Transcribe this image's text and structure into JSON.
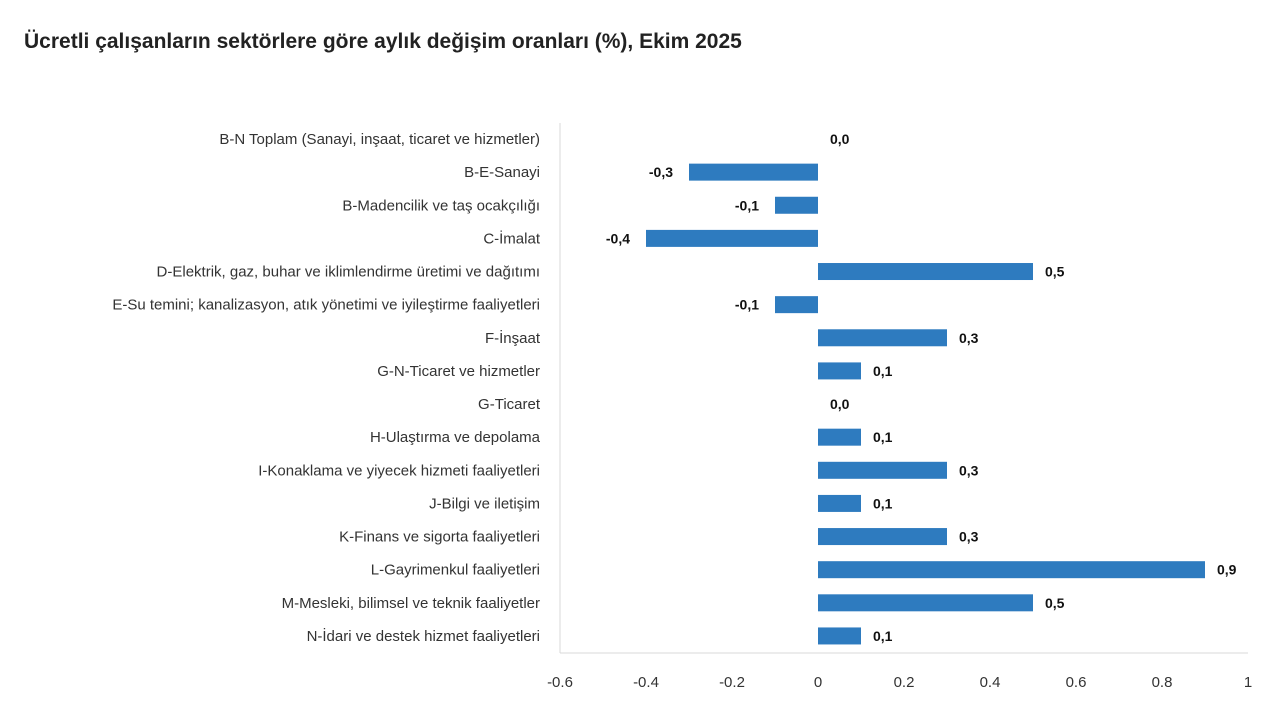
{
  "chart_data": {
    "type": "bar",
    "orientation": "horizontal",
    "title": "Ücretli çalışanların sektörlere göre aylık değişim oranları (%), Ekim 2025",
    "xlabel": "",
    "ylabel": "",
    "xlim": [
      -0.6,
      1.0
    ],
    "ticks": [
      "-0.6",
      "-0.4",
      "-0.2",
      "0",
      "0.2",
      "0.4",
      "0.6",
      "0.8",
      "1"
    ],
    "tick_values": [
      -0.6,
      -0.4,
      -0.2,
      0,
      0.2,
      0.4,
      0.6,
      0.8,
      1.0
    ],
    "grid": false,
    "bar_color": "#2e7bbf",
    "categories": [
      "B-N Toplam (Sanayi, inşaat, ticaret ve hizmetler)",
      "B-E-Sanayi",
      "B-Madencilik ve taş ocakçılığı",
      "C-İmalat",
      "D-Elektrik, gaz, buhar ve iklimlendirme üretimi ve dağıtımı",
      "E-Su temini; kanalizasyon, atık yönetimi ve iyileştirme faaliyetleri",
      "F-İnşaat",
      "G-N-Ticaret ve hizmetler",
      "G-Ticaret",
      "H-Ulaştırma ve depolama",
      "I-Konaklama ve yiyecek hizmeti faaliyetleri",
      "J-Bilgi ve iletişim",
      "K-Finans ve sigorta faaliyetleri",
      "L-Gayrimenkul faaliyetleri",
      "M-Mesleki, bilimsel ve teknik faaliyetler",
      "N-İdari ve destek hizmet faaliyetleri"
    ],
    "values": [
      0.0,
      -0.3,
      -0.1,
      -0.4,
      0.5,
      -0.1,
      0.3,
      0.1,
      0.0,
      0.1,
      0.3,
      0.1,
      0.3,
      0.9,
      0.5,
      0.1
    ],
    "data_labels": [
      "0,0",
      "-0,3",
      "-0,1",
      "-0,4",
      "0,5",
      "-0,1",
      "0,3",
      "0,1",
      "0,0",
      "0,1",
      "0,3",
      "0,1",
      "0,3",
      "0,9",
      "0,5",
      "0,1"
    ]
  }
}
